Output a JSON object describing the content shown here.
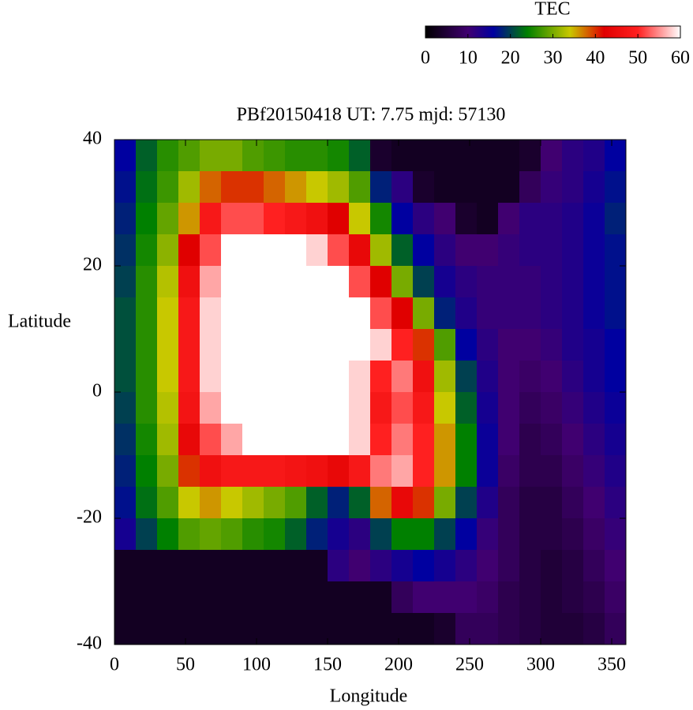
{
  "chart_data": {
    "type": "heatmap",
    "title": "PBf20150418  UT: 7.75  mjd: 57130",
    "xlabel": "Longitude",
    "ylabel": "Latitude",
    "colorbar_title": "TEC",
    "xlim": [
      0,
      360
    ],
    "xticks": [
      0,
      50,
      100,
      150,
      200,
      250,
      300,
      350
    ],
    "ylim": [
      -40,
      40
    ],
    "yticks": [
      -40,
      -20,
      0,
      20,
      40
    ],
    "zlim": [
      0,
      60
    ],
    "zticks": [
      0,
      10,
      20,
      30,
      40,
      50,
      60
    ],
    "colorscale": [
      [
        0,
        "#000000"
      ],
      [
        10,
        "#400070"
      ],
      [
        16,
        "#0000a0"
      ],
      [
        24,
        "#008000"
      ],
      [
        34,
        "#c8c800"
      ],
      [
        42,
        "#e00000"
      ],
      [
        50,
        "#ff2020"
      ],
      [
        60,
        "#ffffff"
      ]
    ],
    "x": [
      7.5,
      22.5,
      37.5,
      52.5,
      67.5,
      82.5,
      97.5,
      112.5,
      127.5,
      142.5,
      157.5,
      172.5,
      187.5,
      202.5,
      217.5,
      232.5,
      247.5,
      262.5,
      277.5,
      292.5,
      307.5,
      322.5,
      337.5,
      352.5
    ],
    "y": [
      37.5,
      32.5,
      27.5,
      22.5,
      17.5,
      12.5,
      7.5,
      2.5,
      -2.5,
      -7.5,
      -12.5,
      -17.5,
      -22.5,
      -27.5,
      -32.5,
      -37.5
    ],
    "z": [
      [
        16,
        22,
        26,
        28,
        30,
        30,
        28,
        27,
        26,
        26,
        25,
        22,
        4,
        3,
        3,
        3,
        3,
        3,
        3,
        4,
        10,
        12,
        13,
        16
      ],
      [
        17,
        23,
        27,
        32,
        38,
        40,
        40,
        38,
        36,
        34,
        32,
        28,
        18,
        12,
        4,
        3,
        3,
        3,
        3,
        8,
        11,
        12,
        14,
        17
      ],
      [
        18,
        24,
        29,
        36,
        48,
        52,
        52,
        50,
        48,
        46,
        42,
        34,
        25,
        16,
        12,
        10,
        4,
        3,
        10,
        12,
        12,
        13,
        15,
        18
      ],
      [
        19,
        25,
        31,
        42,
        52,
        60,
        60,
        60,
        60,
        58,
        52,
        44,
        32,
        22,
        16,
        12,
        10,
        10,
        11,
        12,
        12,
        13,
        15,
        17
      ],
      [
        20,
        26,
        33,
        46,
        56,
        60,
        60,
        60,
        60,
        60,
        60,
        52,
        42,
        30,
        20,
        14,
        12,
        11,
        11,
        11,
        12,
        13,
        15,
        17
      ],
      [
        21,
        26,
        34,
        48,
        58,
        60,
        60,
        60,
        60,
        60,
        60,
        60,
        52,
        42,
        30,
        18,
        13,
        11,
        11,
        11,
        12,
        13,
        15,
        17
      ],
      [
        21,
        26,
        34,
        48,
        58,
        60,
        60,
        60,
        60,
        60,
        60,
        60,
        58,
        50,
        40,
        28,
        16,
        12,
        10,
        10,
        11,
        13,
        14,
        16
      ],
      [
        21,
        26,
        34,
        48,
        58,
        60,
        60,
        60,
        60,
        60,
        60,
        58,
        50,
        54,
        46,
        32,
        20,
        13,
        10,
        9,
        10,
        12,
        14,
        16
      ],
      [
        20,
        26,
        33,
        47,
        56,
        60,
        60,
        60,
        60,
        60,
        60,
        58,
        48,
        52,
        48,
        34,
        22,
        14,
        10,
        8,
        9,
        11,
        13,
        15
      ],
      [
        19,
        25,
        32,
        44,
        52,
        56,
        60,
        60,
        60,
        60,
        60,
        58,
        50,
        54,
        50,
        36,
        24,
        15,
        10,
        7,
        8,
        10,
        12,
        14
      ],
      [
        18,
        24,
        30,
        40,
        46,
        48,
        48,
        48,
        47,
        46,
        44,
        48,
        54,
        56,
        50,
        36,
        24,
        15,
        9,
        7,
        7,
        9,
        11,
        13
      ],
      [
        17,
        23,
        28,
        34,
        36,
        34,
        32,
        30,
        28,
        22,
        18,
        22,
        38,
        44,
        40,
        30,
        20,
        13,
        8,
        6,
        6,
        8,
        10,
        12
      ],
      [
        14,
        20,
        24,
        28,
        29,
        28,
        26,
        25,
        22,
        18,
        14,
        12,
        20,
        24,
        24,
        20,
        16,
        11,
        8,
        6,
        6,
        7,
        9,
        11
      ],
      [
        3,
        3,
        3,
        3,
        3,
        3,
        3,
        3,
        3,
        3,
        12,
        10,
        12,
        14,
        16,
        14,
        12,
        10,
        8,
        6,
        5,
        6,
        8,
        10
      ],
      [
        3,
        3,
        3,
        3,
        3,
        3,
        3,
        3,
        3,
        3,
        3,
        3,
        3,
        8,
        10,
        10,
        10,
        9,
        7,
        6,
        5,
        6,
        7,
        9
      ],
      [
        3,
        3,
        3,
        3,
        3,
        3,
        3,
        3,
        3,
        3,
        3,
        3,
        3,
        3,
        3,
        4,
        8,
        8,
        7,
        6,
        5,
        5,
        6,
        8
      ]
    ]
  }
}
